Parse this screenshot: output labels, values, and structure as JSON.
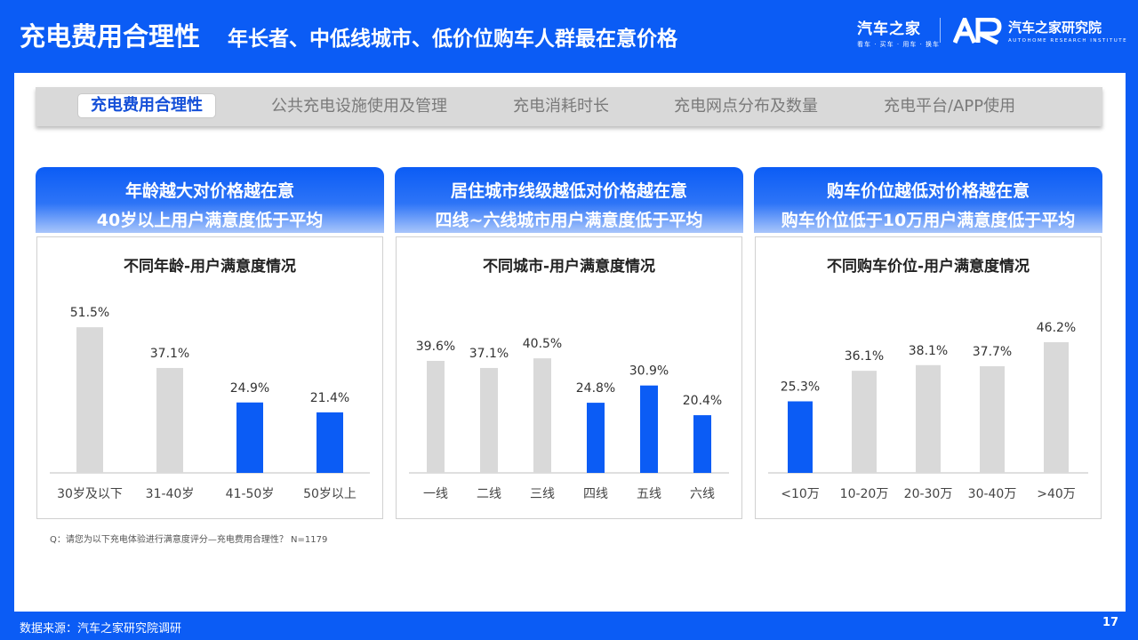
{
  "header": {
    "title": "充电费用合理性",
    "subtitle": "年长者、中低线城市、低价位购车人群最在意价格",
    "logo1_main": "汽车之家",
    "logo1_tagline": "看车 · 买车 · 用车 · 换车",
    "logo2_main": "汽车之家研究院",
    "logo2_tagline": "AUTOHOME RESEARCH INSTITUTE"
  },
  "tabs": [
    {
      "label": "充电费用合理性",
      "active": true
    },
    {
      "label": "公共充电设施使用及管理",
      "active": false
    },
    {
      "label": "充电消耗时长",
      "active": false
    },
    {
      "label": "充电网点分布及数量",
      "active": false
    },
    {
      "label": "充电平台/APP使用",
      "active": false
    }
  ],
  "cards": [
    {
      "heading_line1": "年龄越大对价格越在意",
      "heading_line2": "40岁以上用户满意度低于平均"
    },
    {
      "heading_line1": "居住城市线级越低对价格越在意",
      "heading_line2": "四线~六线城市用户满意度低于平均"
    },
    {
      "heading_line1": "购车价位越低对价格越在意",
      "heading_line2": "购车价位低于10万用户满意度低于平均"
    }
  ],
  "colors": {
    "highlight": "#0b5cf5",
    "normal": "#d9d9d9",
    "axis": "#bfbfbf"
  },
  "chart_data": [
    {
      "type": "bar",
      "title": "不同年龄-用户满意度情况",
      "categories": [
        "30岁及以下",
        "31-40岁",
        "41-50岁",
        "50岁以上"
      ],
      "values": [
        51.5,
        37.1,
        24.9,
        21.4
      ],
      "labels": [
        "51.5%",
        "37.1%",
        "24.9%",
        "21.4%"
      ],
      "highlight": [
        false,
        false,
        true,
        true
      ],
      "ylim": [
        0,
        55
      ]
    },
    {
      "type": "bar",
      "title": "不同城市-用户满意度情况",
      "categories": [
        "一线",
        "二线",
        "三线",
        "四线",
        "五线",
        "六线"
      ],
      "values": [
        39.6,
        37.1,
        40.5,
        24.8,
        30.9,
        20.4
      ],
      "labels": [
        "39.6%",
        "37.1%",
        "40.5%",
        "24.8%",
        "30.9%",
        "20.4%"
      ],
      "highlight": [
        false,
        false,
        false,
        true,
        true,
        true
      ],
      "ylim": [
        0,
        55
      ]
    },
    {
      "type": "bar",
      "title": "不同购车价位-用户满意度情况",
      "categories": [
        "<10万",
        "10-20万",
        "20-30万",
        "30-40万",
        ">40万"
      ],
      "values": [
        25.3,
        36.1,
        38.1,
        37.7,
        46.2
      ],
      "labels": [
        "25.3%",
        "36.1%",
        "38.1%",
        "37.7%",
        "46.2%"
      ],
      "highlight": [
        true,
        false,
        false,
        false,
        false
      ],
      "ylim": [
        0,
        55
      ]
    }
  ],
  "footnote": "Q：请您为以下充电体验进行满意度评分—充电费用合理性？ N=1179",
  "source": "数据来源：汽车之家研究院调研",
  "page_number": "17"
}
